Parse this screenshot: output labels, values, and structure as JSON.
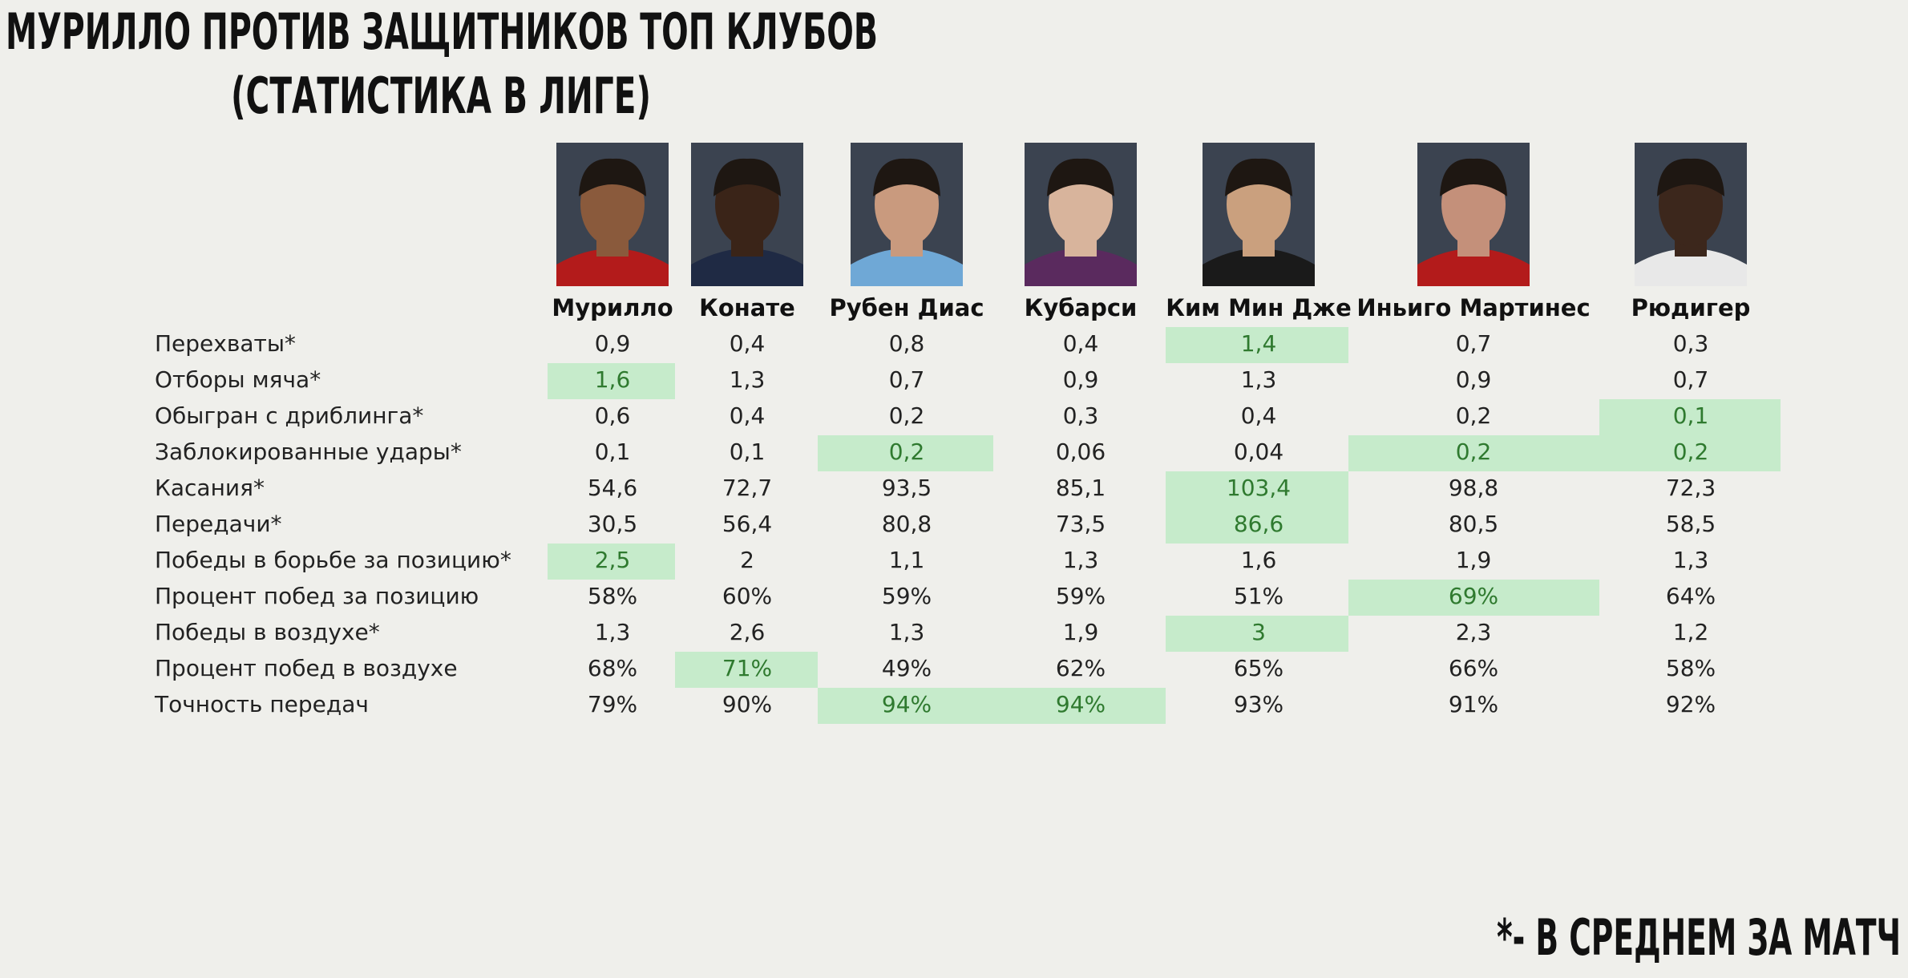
{
  "header": {
    "title_line1": "МУРИЛЛО ПРОТИВ ЗАЩИТНИКОВ ТОП КЛУБОВ",
    "title_line2": "(СТАТИСТИКА В ЛИГЕ)"
  },
  "table": {
    "columns": [
      "Мурилло",
      "Конате",
      "Рубен Диас",
      "Кубарси",
      "Ким Мин Дже",
      "Иньиго Мартинес",
      "Рюдигер"
    ],
    "rows": [
      {
        "label": "Перехваты*",
        "values": [
          "0,9",
          "0,4",
          "0,8",
          "0,4",
          "1,4",
          "0,7",
          "0,3"
        ],
        "highlight": [
          4
        ]
      },
      {
        "label": "Отборы мяча*",
        "values": [
          "1,6",
          "1,3",
          "0,7",
          "0,9",
          "1,3",
          "0,9",
          "0,7"
        ],
        "highlight": [
          0
        ]
      },
      {
        "label": "Обыгран с дриблинга*",
        "values": [
          "0,6",
          "0,4",
          "0,2",
          "0,3",
          "0,4",
          "0,2",
          "0,1"
        ],
        "highlight": [
          6
        ]
      },
      {
        "label": "Заблокированные удары*",
        "values": [
          "0,1",
          "0,1",
          "0,2",
          "0,06",
          "0,04",
          "0,2",
          "0,2"
        ],
        "highlight": [
          2,
          5,
          6
        ]
      },
      {
        "label": "Касания*",
        "values": [
          "54,6",
          "72,7",
          "93,5",
          "85,1",
          "103,4",
          "98,8",
          "72,3"
        ],
        "highlight": [
          4
        ]
      },
      {
        "label": "Передачи*",
        "values": [
          "30,5",
          "56,4",
          "80,8",
          "73,5",
          "86,6",
          "80,5",
          "58,5"
        ],
        "highlight": [
          4
        ]
      },
      {
        "label": "Победы в борьбе за позицию*",
        "values": [
          "2,5",
          "2",
          "1,1",
          "1,3",
          "1,6",
          "1,9",
          "1,3"
        ],
        "highlight": [
          0
        ]
      },
      {
        "label": "Процент побед за позицию",
        "values": [
          "58%",
          "60%",
          "59%",
          "59%",
          "51%",
          "69%",
          "64%"
        ],
        "highlight": [
          5
        ]
      },
      {
        "label": "Победы в воздухе*",
        "values": [
          "1,3",
          "2,6",
          "1,3",
          "1,9",
          "3",
          "2,3",
          "1,2"
        ],
        "highlight": [
          4
        ]
      },
      {
        "label": "Процент побед в воздухе",
        "values": [
          "68%",
          "71%",
          "49%",
          "62%",
          "65%",
          "66%",
          "58%"
        ],
        "highlight": [
          1
        ]
      },
      {
        "label": "Точность передач",
        "values": [
          "79%",
          "90%",
          "94%",
          "94%",
          "93%",
          "91%",
          "92%"
        ],
        "highlight": [
          2,
          3
        ]
      }
    ]
  },
  "footnote": "*- В СРЕДНЕМ ЗА МАТЧ"
}
